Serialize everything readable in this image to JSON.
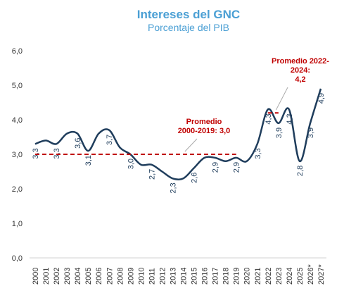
{
  "chart_data": {
    "type": "line",
    "title": "Intereses del GNC",
    "subtitle": "Porcentaje del PIB",
    "categories": [
      "2000",
      "2001",
      "2002",
      "2003",
      "2004",
      "2005",
      "2006",
      "2007",
      "2008",
      "2009",
      "2010",
      "2011",
      "2012",
      "2013",
      "2014",
      "2015",
      "2016",
      "2017",
      "2018",
      "2019",
      "2020",
      "2021",
      "2022",
      "2023",
      "2024",
      "2025",
      "2026*",
      "2027*"
    ],
    "series": [
      {
        "color": "#1f3d5c",
        "values": [
          3.3,
          3.4,
          3.3,
          3.6,
          3.6,
          3.1,
          3.6,
          3.7,
          3.2,
          3.0,
          2.7,
          2.7,
          2.5,
          2.3,
          2.3,
          2.6,
          2.9,
          2.9,
          2.8,
          2.9,
          2.8,
          3.3,
          4.3,
          3.9,
          4.3,
          2.8,
          3.9,
          4.9
        ],
        "value_labels": [
          "3,3",
          null,
          "3,3",
          null,
          "3,6",
          "3,1",
          null,
          "3,7",
          null,
          "3,0",
          null,
          "2,7",
          null,
          "2,3",
          null,
          "2,6",
          null,
          "2,9",
          null,
          "2,9",
          null,
          "3,3",
          "4,3",
          "3,9",
          "4,3",
          "2,8",
          "3,9",
          "4,9"
        ]
      }
    ],
    "ylim": [
      0,
      6
    ],
    "yticks": [
      {
        "value": 0,
        "label": "0,0"
      },
      {
        "value": 1,
        "label": "1,0"
      },
      {
        "value": 2,
        "label": "2,0"
      },
      {
        "value": 3,
        "label": "3,0"
      },
      {
        "value": 4,
        "label": "4,0"
      },
      {
        "value": 5,
        "label": "5,0"
      },
      {
        "value": 6,
        "label": "6,0"
      }
    ],
    "annotations": [
      {
        "text": [
          "Promedio",
          "2000-2019: 3,0"
        ],
        "value": 3.0,
        "x_start": "2000",
        "x_end": "2019",
        "color": "#c00000"
      },
      {
        "text": [
          "Promedio 2022-",
          "2024:",
          "4,2"
        ],
        "value": 4.2,
        "x_start": "2022",
        "x_end": "2023",
        "color": "#c00000"
      }
    ]
  }
}
